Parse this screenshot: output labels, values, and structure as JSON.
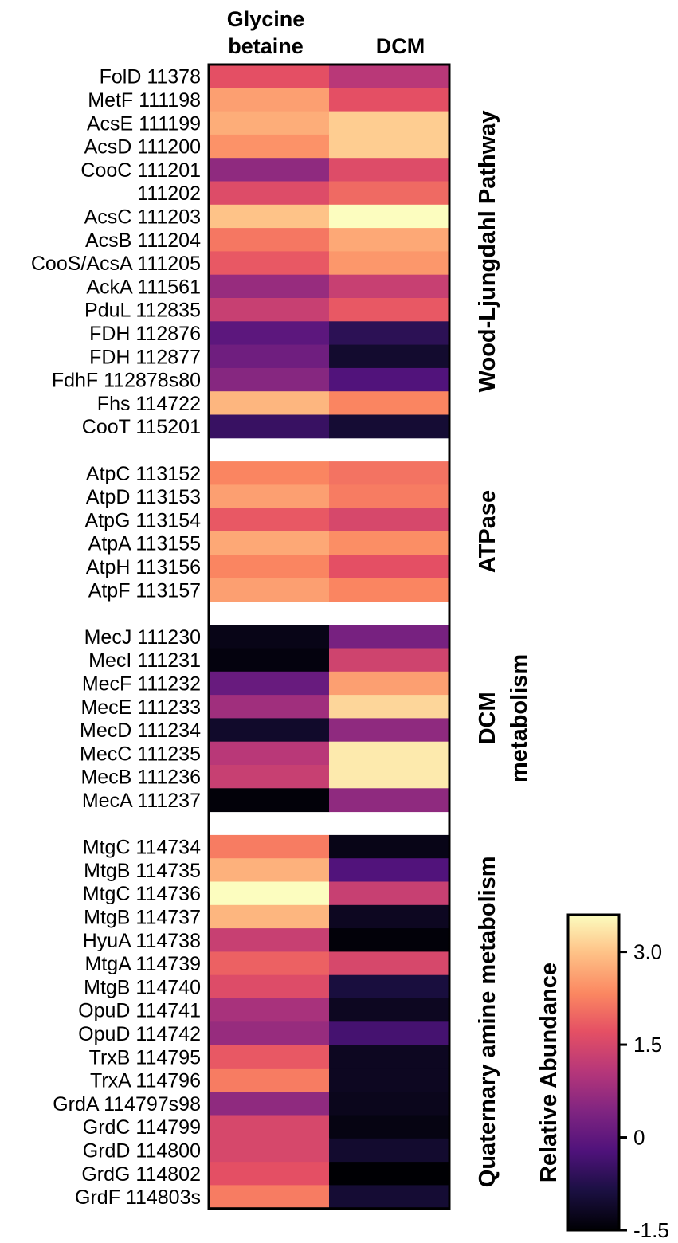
{
  "chart_data": {
    "type": "heatmap",
    "columns": [
      {
        "lines": [
          "Glycine",
          "betaine"
        ]
      },
      {
        "lines": [
          "DCM"
        ]
      }
    ],
    "colorbar": {
      "title": "Relative Abundance",
      "min": -1.5,
      "max": 3.6,
      "ticks": [
        -1.5,
        0,
        1.5,
        3.0
      ],
      "tick_labels": [
        "-1.5",
        "0",
        "1.5",
        "3.0"
      ],
      "stops": [
        {
          "v": 0.0,
          "c": "#000004"
        },
        {
          "v": 0.13,
          "c": "#1c1044"
        },
        {
          "v": 0.25,
          "c": "#4f127b"
        },
        {
          "v": 0.38,
          "c": "#812581"
        },
        {
          "v": 0.5,
          "c": "#b5367a"
        },
        {
          "v": 0.63,
          "c": "#e55064"
        },
        {
          "v": 0.75,
          "c": "#fb8761"
        },
        {
          "v": 0.88,
          "c": "#fec287"
        },
        {
          "v": 1.0,
          "c": "#fcfdbf"
        }
      ]
    },
    "groups": [
      {
        "name": "Wood-Ljungdahl Pathway",
        "label_lines": [
          "Wood-Ljungdahl Pathway"
        ],
        "rows": [
          {
            "label": "FolD 11378",
            "values": [
              1.7,
              1.1
            ]
          },
          {
            "label": "MetF 111198",
            "values": [
              2.6,
              1.7
            ]
          },
          {
            "label": "AcsE 111199",
            "values": [
              2.75,
              3.1
            ]
          },
          {
            "label": "AcsD 111200",
            "values": [
              2.45,
              3.1
            ]
          },
          {
            "label": "CooC 111201",
            "values": [
              0.6,
              1.6
            ]
          },
          {
            "label": "111202",
            "values": [
              1.6,
              2.0
            ]
          },
          {
            "label": "AcsC 111203",
            "values": [
              3.0,
              3.6
            ]
          },
          {
            "label": "AcsB 111204",
            "values": [
              2.15,
              2.7
            ]
          },
          {
            "label": "CooS/AcsA 111205",
            "values": [
              1.8,
              2.5
            ]
          },
          {
            "label": "AckA 111561",
            "values": [
              0.7,
              1.3
            ]
          },
          {
            "label": "PduL 112835",
            "values": [
              1.3,
              1.8
            ]
          },
          {
            "label": "FDH 112876",
            "values": [
              -0.05,
              -0.65
            ]
          },
          {
            "label": "FDH 112877",
            "values": [
              0.2,
              -1.05
            ]
          },
          {
            "label": "FdhF 112878s80",
            "values": [
              0.5,
              -0.2
            ]
          },
          {
            "label": "Fhs 114722",
            "values": [
              2.85,
              2.3
            ]
          },
          {
            "label": "CooT 115201",
            "values": [
              -0.5,
              -1.0
            ]
          }
        ]
      },
      {
        "name": "ATPase",
        "label_lines": [
          "ATPase"
        ],
        "rows": [
          {
            "label": "AtpC 113152",
            "values": [
              2.3,
              2.1
            ]
          },
          {
            "label": "AtpD 113153",
            "values": [
              2.6,
              2.2
            ]
          },
          {
            "label": "AtpG 113154",
            "values": [
              1.8,
              1.5
            ]
          },
          {
            "label": "AtpA 113155",
            "values": [
              2.7,
              2.4
            ]
          },
          {
            "label": "AtpH 113156",
            "values": [
              2.3,
              1.7
            ]
          },
          {
            "label": "AtpF 113157",
            "values": [
              2.6,
              2.3
            ]
          }
        ]
      },
      {
        "name": "DCM metabolism",
        "label_lines": [
          "DCM",
          "metabolism"
        ],
        "rows": [
          {
            "label": "MecJ 111230",
            "values": [
              -1.3,
              0.3
            ]
          },
          {
            "label": "MecI 111231",
            "values": [
              -1.4,
              1.4
            ]
          },
          {
            "label": "MecF 111232",
            "values": [
              0.1,
              2.6
            ]
          },
          {
            "label": "MecE 111233",
            "values": [
              0.8,
              3.2
            ]
          },
          {
            "label": "MecD 111234",
            "values": [
              -1.1,
              0.6
            ]
          },
          {
            "label": "MecC 111235",
            "values": [
              1.1,
              3.4
            ]
          },
          {
            "label": "MecB 111236",
            "values": [
              1.3,
              3.4
            ]
          },
          {
            "label": "MecA 111237",
            "values": [
              -1.45,
              0.6
            ]
          }
        ]
      },
      {
        "name": "Quaternary amine metabolism",
        "label_lines": [
          "Quaternary amine metabolism"
        ],
        "rows": [
          {
            "label": "MtgC 114734",
            "values": [
              2.2,
              -1.3
            ]
          },
          {
            "label": "MtgB 114735",
            "values": [
              2.8,
              -0.2
            ]
          },
          {
            "label": "MtgC 114736",
            "values": [
              3.6,
              1.3
            ]
          },
          {
            "label": "MtgB 114737",
            "values": [
              2.85,
              -1.2
            ]
          },
          {
            "label": "HyuA 114738",
            "values": [
              1.3,
              -1.45
            ]
          },
          {
            "label": "MtgA 114739",
            "values": [
              1.9,
              1.5
            ]
          },
          {
            "label": "MtgB 114740",
            "values": [
              1.6,
              -0.9
            ]
          },
          {
            "label": "OpuD 114741",
            "values": [
              0.9,
              -1.2
            ]
          },
          {
            "label": "OpuD 114742",
            "values": [
              0.7,
              -0.35
            ]
          },
          {
            "label": "TrxB 114795",
            "values": [
              1.8,
              -1.2
            ]
          },
          {
            "label": "TrxA 114796",
            "values": [
              2.2,
              -1.2
            ]
          },
          {
            "label": "GrdA 114797s98",
            "values": [
              0.6,
              -1.25
            ]
          },
          {
            "label": "GrdC 114799",
            "values": [
              1.5,
              -1.35
            ]
          },
          {
            "label": "GrdD 114800",
            "values": [
              1.5,
              -1.05
            ]
          },
          {
            "label": "GrdG 114802",
            "values": [
              1.7,
              -1.5
            ]
          },
          {
            "label": "GrdF 114803s",
            "values": [
              2.2,
              -1.0
            ]
          }
        ]
      }
    ]
  }
}
